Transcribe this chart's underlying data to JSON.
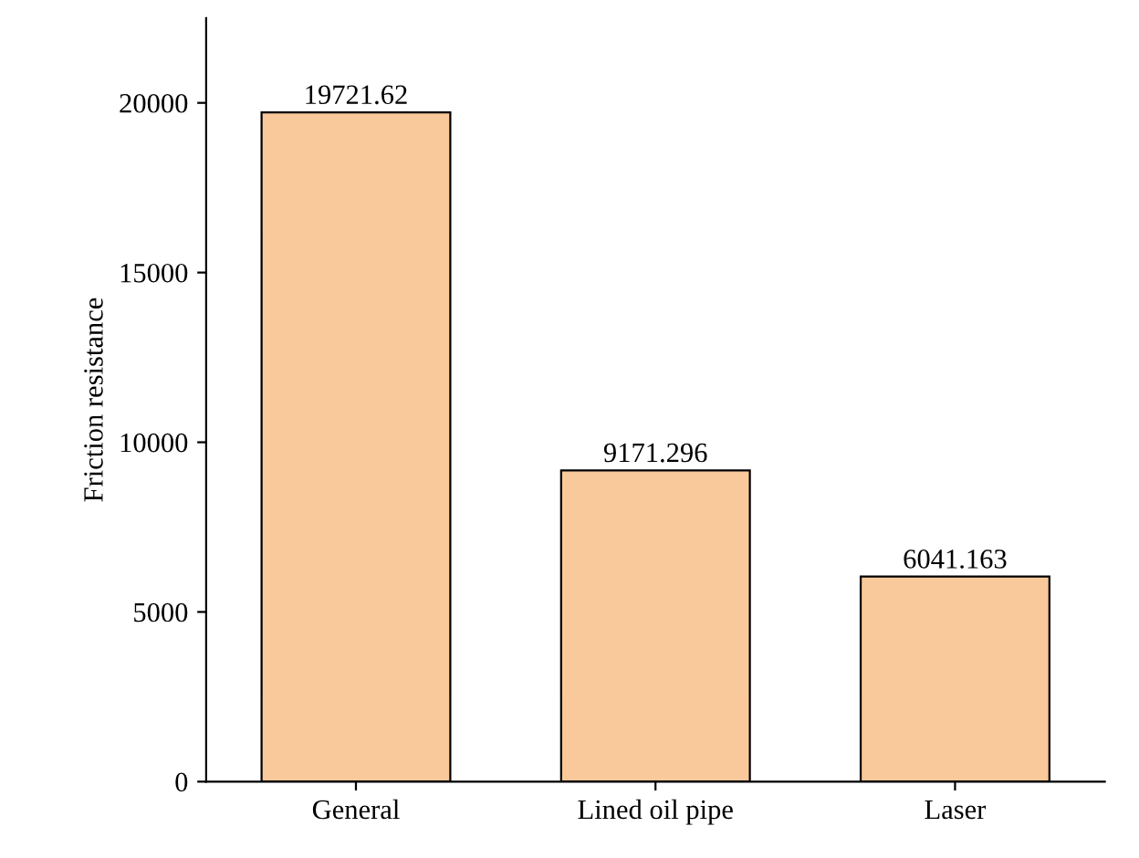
{
  "chart_data": {
    "type": "bar",
    "ylabel": "Friction resistance",
    "categories": [
      "General",
      "Lined oil pipe",
      "Laser"
    ],
    "values": [
      19721.62,
      9171.296,
      6041.163
    ],
    "color": "#f9c89b",
    "ylim": [
      0,
      22500
    ],
    "yticks": [
      0,
      5000,
      10000,
      15000,
      20000
    ],
    "data_labels": true
  }
}
